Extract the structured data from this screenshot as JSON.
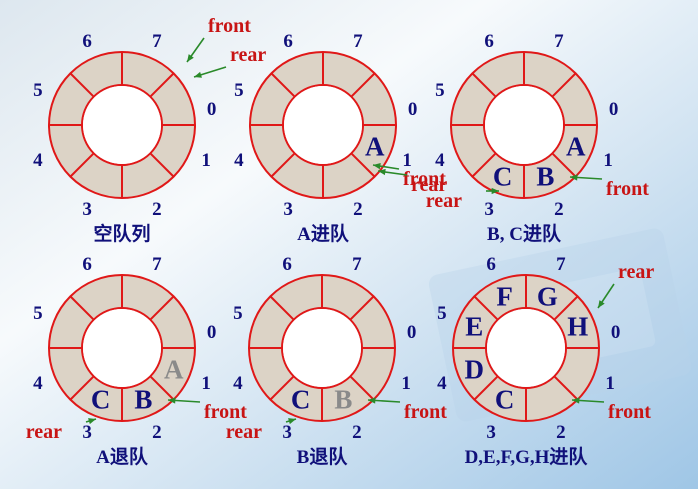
{
  "diagrams": [
    {
      "caption": "空队列",
      "index_labels": [
        "0",
        "1",
        "2",
        "3",
        "4",
        "5",
        "6",
        "7"
      ],
      "elements": [],
      "front": {
        "label": "front",
        "slot": 0
      },
      "rear": {
        "label": "rear",
        "slot": 0
      }
    },
    {
      "caption": "A进队",
      "index_labels": [
        "0",
        "1",
        "2",
        "3",
        "4",
        "5",
        "6",
        "7"
      ],
      "elements": [
        {
          "slot": 0,
          "value": "A",
          "removed": false
        }
      ],
      "front": {
        "label": "front",
        "slot": 0
      },
      "rear": {
        "label": "rear",
        "slot": 1
      }
    },
    {
      "caption": "B, C进队",
      "index_labels": [
        "0",
        "1",
        "2",
        "3",
        "4",
        "5",
        "6",
        "7"
      ],
      "elements": [
        {
          "slot": 0,
          "value": "A",
          "removed": false
        },
        {
          "slot": 1,
          "value": "B",
          "removed": false
        },
        {
          "slot": 2,
          "value": "C",
          "removed": false
        }
      ],
      "front": {
        "label": "front",
        "slot": 0
      },
      "rear": {
        "label": "rear",
        "slot": 3
      }
    },
    {
      "caption": "A退队",
      "index_labels": [
        "0",
        "1",
        "2",
        "3",
        "4",
        "5",
        "6",
        "7"
      ],
      "elements": [
        {
          "slot": 0,
          "value": "A",
          "removed": true
        },
        {
          "slot": 1,
          "value": "B",
          "removed": false
        },
        {
          "slot": 2,
          "value": "C",
          "removed": false
        }
      ],
      "front": {
        "label": "front",
        "slot": 1
      },
      "rear": {
        "label": "rear",
        "slot": 3
      }
    },
    {
      "caption": "B退队",
      "index_labels": [
        "0",
        "1",
        "2",
        "3",
        "4",
        "5",
        "6",
        "7"
      ],
      "elements": [
        {
          "slot": 1,
          "value": "B",
          "removed": true
        },
        {
          "slot": 2,
          "value": "C",
          "removed": false
        }
      ],
      "front": {
        "label": "front",
        "slot": 2
      },
      "rear": {
        "label": "rear",
        "slot": 3
      }
    },
    {
      "caption": "D,E,F,G,H进队",
      "index_labels": [
        "0",
        "1",
        "2",
        "3",
        "4",
        "5",
        "6",
        "7"
      ],
      "elements": [
        {
          "slot": 2,
          "value": "C",
          "removed": false
        },
        {
          "slot": 3,
          "value": "D",
          "removed": false
        },
        {
          "slot": 4,
          "value": "E",
          "removed": false
        },
        {
          "slot": 5,
          "value": "F",
          "removed": false
        },
        {
          "slot": 6,
          "value": "G",
          "removed": false
        },
        {
          "slot": 7,
          "value": "H",
          "removed": false
        }
      ],
      "front": {
        "label": "front",
        "slot": 2
      },
      "rear": {
        "label": "rear",
        "slot": 0
      }
    }
  ],
  "colors": {
    "ring_fill": "#dcd3c6",
    "ring_stroke": "#e01818",
    "index_text": "#10107a",
    "pointer_text": "#c81414",
    "arrow": "#2a8a2a",
    "element_text": "#10107a",
    "removed_text": "#8a8a8a"
  }
}
